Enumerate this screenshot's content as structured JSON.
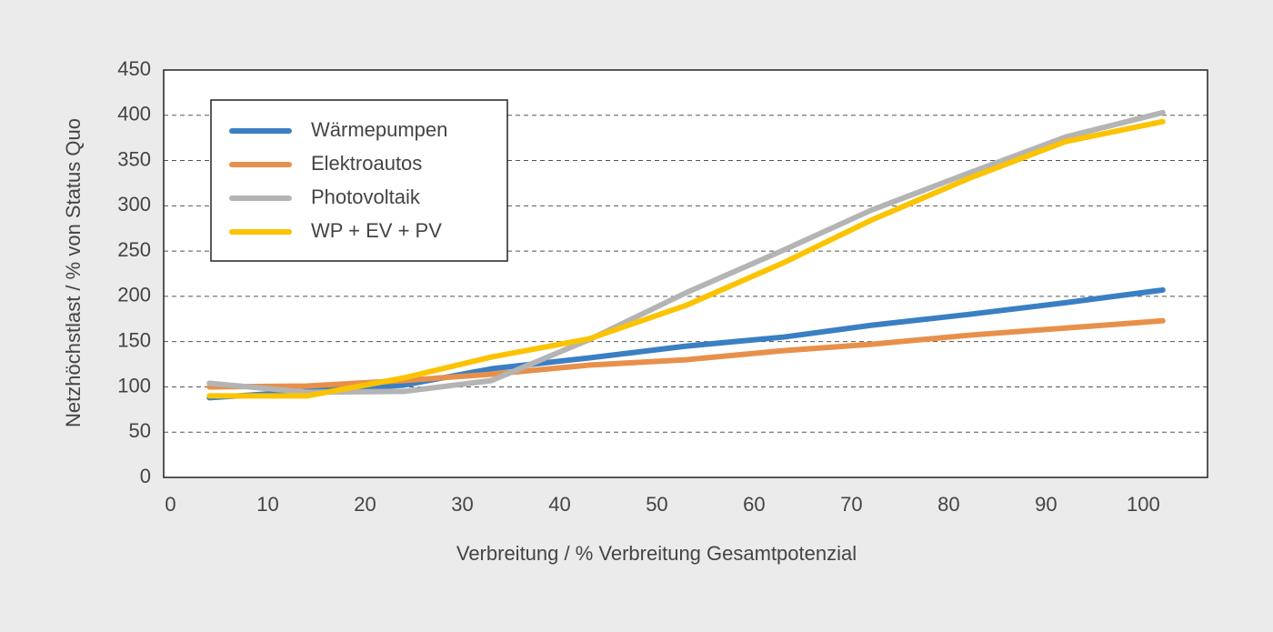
{
  "chart_data": {
    "type": "line",
    "xlabel": "Verbreitung / % Verbreitung Gesamtpotenzial",
    "ylabel": "Netzhöchstlast / % von Status Quo",
    "x": [
      4,
      14,
      24,
      33,
      43,
      53,
      63,
      72,
      82,
      92,
      102
    ],
    "series": [
      {
        "name": "Wärmepumpen",
        "color": "#3a7fc4",
        "values": [
          88,
          95,
          102,
          120,
          132,
          145,
          155,
          168,
          180,
          193,
          207
        ]
      },
      {
        "name": "Elektroautos",
        "color": "#e8904a",
        "values": [
          100,
          101,
          107,
          114,
          124,
          130,
          140,
          147,
          157,
          165,
          173
        ]
      },
      {
        "name": "Photovoltaik",
        "color": "#b4b4b4",
        "values": [
          104,
          94,
          95,
          107,
          152,
          204,
          251,
          295,
          336,
          376,
          403
        ]
      },
      {
        "name": "WP + EV + PV",
        "color": "#fbc300",
        "values": [
          90,
          90,
          110,
          133,
          153,
          190,
          237,
          284,
          330,
          371,
          393
        ]
      }
    ],
    "xlim": [
      -0.7,
      106.6
    ],
    "xticks": [
      0,
      10,
      20,
      30,
      40,
      50,
      60,
      70,
      80,
      90,
      100
    ],
    "ylim": [
      0,
      450
    ],
    "yticks": [
      0,
      50,
      100,
      150,
      200,
      250,
      300,
      350,
      400,
      450
    ],
    "grid": true,
    "legend": "upper left"
  }
}
